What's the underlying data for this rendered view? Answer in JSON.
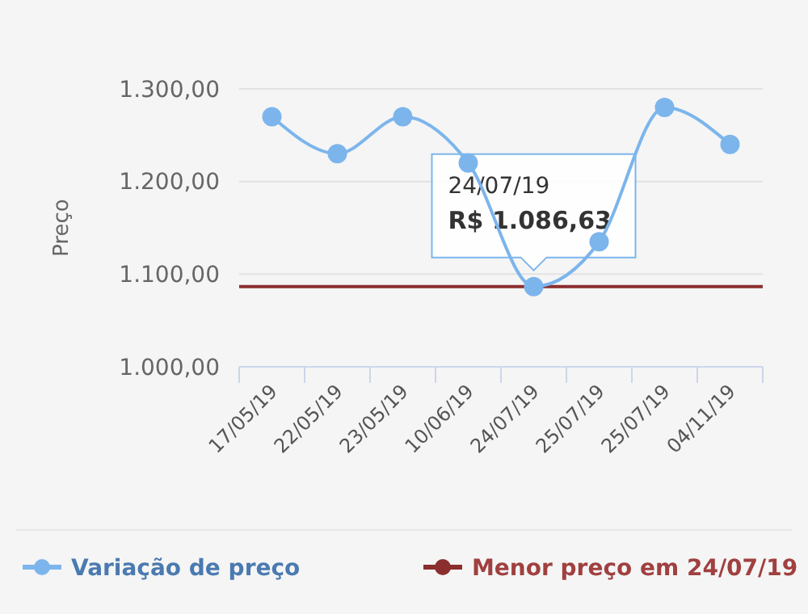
{
  "chart_data": {
    "type": "line",
    "ylabel": "Preço",
    "categories": [
      "17/05/19",
      "22/05/19",
      "23/05/19",
      "10/06/19",
      "24/07/19",
      "25/07/19",
      "25/07/19",
      "04/11/19"
    ],
    "series": [
      {
        "name": "Variação de preço",
        "color": "#7cb5ec",
        "values": [
          1270,
          1230,
          1270,
          1220,
          1086.63,
          1135,
          1280,
          1240
        ]
      }
    ],
    "ylim": [
      1000,
      1300
    ],
    "yticks": [
      {
        "value": 1000,
        "label": "1.000,00"
      },
      {
        "value": 1100,
        "label": "1.100,00"
      },
      {
        "value": 1200,
        "label": "1.200,00"
      },
      {
        "value": 1300,
        "label": "1.300,00"
      }
    ],
    "ref_lines": [
      {
        "axis": "y",
        "value": 1086.63,
        "label": "Menor preço em 24/07/19",
        "color": "#8b2e2e"
      }
    ],
    "annotations": [
      {
        "text": "24/07/19\nR$ 1.086,63",
        "x": "24/07/19",
        "y": 1086.63
      }
    ],
    "grid": "y",
    "legend": "bottom",
    "marker": "circle",
    "line_style": "solid"
  }
}
